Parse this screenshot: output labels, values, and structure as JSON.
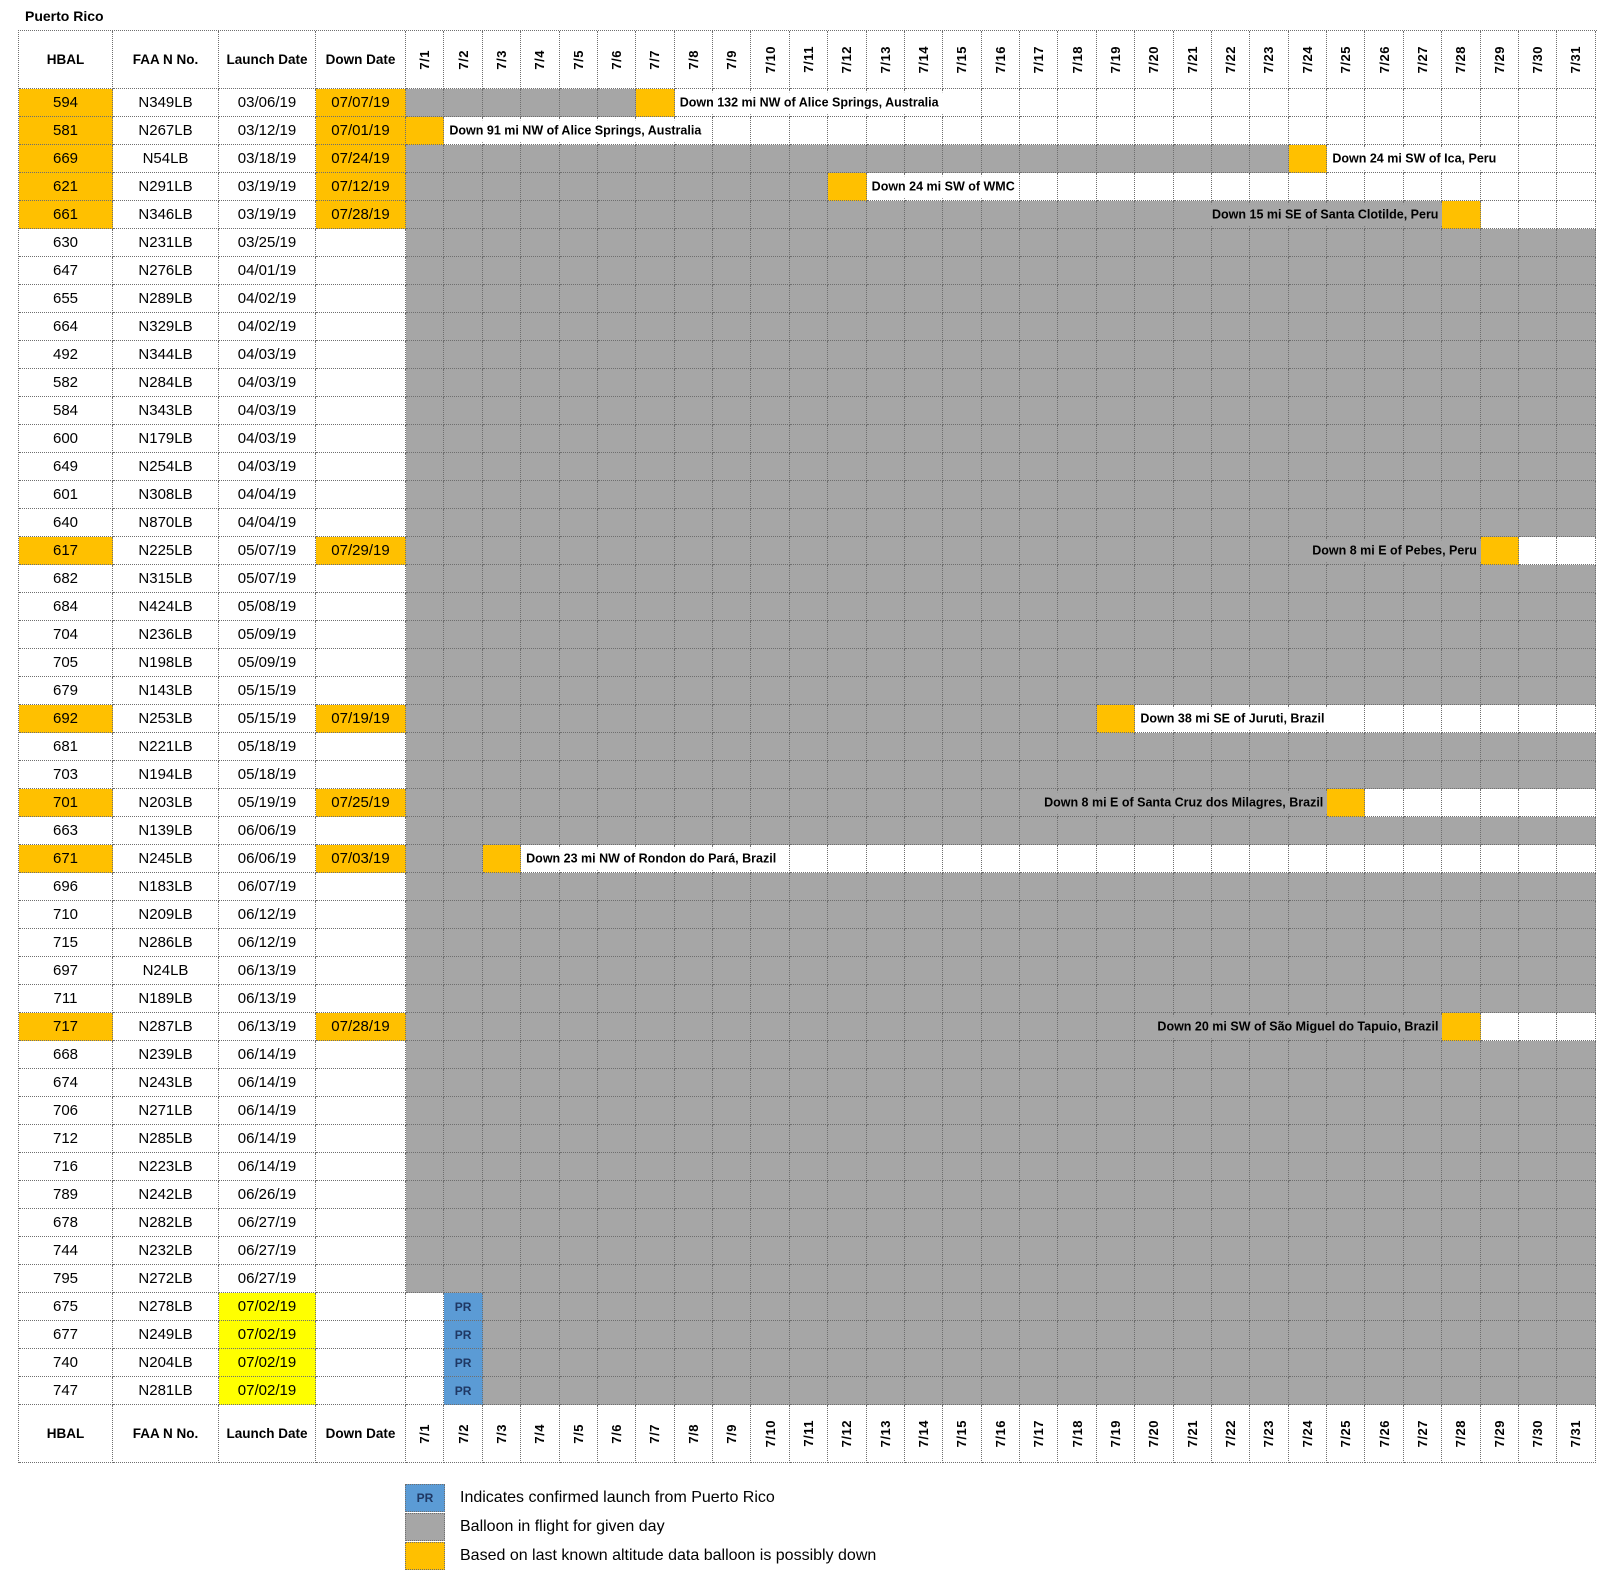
{
  "chart_data": {
    "type": "table",
    "title": "Puerto Rico",
    "columns": [
      "HBAL",
      "FAA N No.",
      "Launch Date",
      "Down Date"
    ],
    "days": [
      "7/1",
      "7/2",
      "7/3",
      "7/4",
      "7/5",
      "7/6",
      "7/7",
      "7/8",
      "7/9",
      "7/10",
      "7/11",
      "7/12",
      "7/13",
      "7/14",
      "7/15",
      "7/16",
      "7/17",
      "7/18",
      "7/19",
      "7/20",
      "7/21",
      "7/22",
      "7/23",
      "7/24",
      "7/25",
      "7/26",
      "7/27",
      "7/28",
      "7/29",
      "7/30",
      "7/31"
    ],
    "pr_cell_text": "PR",
    "colors": {
      "possibly_down_orange": "#FFC000",
      "launch_yellow": "#FFFF00",
      "in_flight_gray": "#A6A6A6",
      "pr_blue": "#5B9BD5",
      "pr_text": "#1F3864"
    },
    "rows": [
      {
        "hbal": "594",
        "faa": "N349LB",
        "launch": "03/06/19",
        "down": "07/07/19",
        "gray": [
          1,
          6
        ],
        "orange_day": 7,
        "label": "Down 132 mi NW of Alice Springs, Australia",
        "label_side": "after"
      },
      {
        "hbal": "581",
        "faa": "N267LB",
        "launch": "03/12/19",
        "down": "07/01/19",
        "gray": null,
        "orange_day": 1,
        "label": "Down 91 mi NW of Alice Springs, Australia",
        "label_side": "after"
      },
      {
        "hbal": "669",
        "faa": "N54LB",
        "launch": "03/18/19",
        "down": "07/24/19",
        "gray": [
          1,
          23
        ],
        "orange_day": 24,
        "label": "Down 24 mi SW of Ica, Peru",
        "label_side": "after"
      },
      {
        "hbal": "621",
        "faa": "N291LB",
        "launch": "03/19/19",
        "down": "07/12/19",
        "gray": [
          1,
          11
        ],
        "orange_day": 12,
        "label": "Down 24 mi SW of WMC",
        "label_side": "after"
      },
      {
        "hbal": "661",
        "faa": "N346LB",
        "launch": "03/19/19",
        "down": "07/28/19",
        "gray": [
          1,
          27
        ],
        "orange_day": 28,
        "label": "Down 15 mi SE of Santa Clotilde, Peru",
        "label_side": "before"
      },
      {
        "hbal": "630",
        "faa": "N231LB",
        "launch": "03/25/19",
        "down": "",
        "gray": [
          1,
          31
        ]
      },
      {
        "hbal": "647",
        "faa": "N276LB",
        "launch": "04/01/19",
        "down": "",
        "gray": [
          1,
          31
        ]
      },
      {
        "hbal": "655",
        "faa": "N289LB",
        "launch": "04/02/19",
        "down": "",
        "gray": [
          1,
          31
        ]
      },
      {
        "hbal": "664",
        "faa": "N329LB",
        "launch": "04/02/19",
        "down": "",
        "gray": [
          1,
          31
        ]
      },
      {
        "hbal": "492",
        "faa": "N344LB",
        "launch": "04/03/19",
        "down": "",
        "gray": [
          1,
          31
        ]
      },
      {
        "hbal": "582",
        "faa": "N284LB",
        "launch": "04/03/19",
        "down": "",
        "gray": [
          1,
          31
        ]
      },
      {
        "hbal": "584",
        "faa": "N343LB",
        "launch": "04/03/19",
        "down": "",
        "gray": [
          1,
          31
        ]
      },
      {
        "hbal": "600",
        "faa": "N179LB",
        "launch": "04/03/19",
        "down": "",
        "gray": [
          1,
          31
        ]
      },
      {
        "hbal": "649",
        "faa": "N254LB",
        "launch": "04/03/19",
        "down": "",
        "gray": [
          1,
          31
        ]
      },
      {
        "hbal": "601",
        "faa": "N308LB",
        "launch": "04/04/19",
        "down": "",
        "gray": [
          1,
          31
        ]
      },
      {
        "hbal": "640",
        "faa": "N870LB",
        "launch": "04/04/19",
        "down": "",
        "gray": [
          1,
          31
        ]
      },
      {
        "hbal": "617",
        "faa": "N225LB",
        "launch": "05/07/19",
        "down": "07/29/19",
        "gray": [
          1,
          28
        ],
        "orange_day": 29,
        "label": "Down 8 mi E of Pebes, Peru",
        "label_side": "before"
      },
      {
        "hbal": "682",
        "faa": "N315LB",
        "launch": "05/07/19",
        "down": "",
        "gray": [
          1,
          31
        ]
      },
      {
        "hbal": "684",
        "faa": "N424LB",
        "launch": "05/08/19",
        "down": "",
        "gray": [
          1,
          31
        ]
      },
      {
        "hbal": "704",
        "faa": "N236LB",
        "launch": "05/09/19",
        "down": "",
        "gray": [
          1,
          31
        ]
      },
      {
        "hbal": "705",
        "faa": "N198LB",
        "launch": "05/09/19",
        "down": "",
        "gray": [
          1,
          31
        ]
      },
      {
        "hbal": "679",
        "faa": "N143LB",
        "launch": "05/15/19",
        "down": "",
        "gray": [
          1,
          31
        ]
      },
      {
        "hbal": "692",
        "faa": "N253LB",
        "launch": "05/15/19",
        "down": "07/19/19",
        "gray": [
          1,
          18
        ],
        "orange_day": 19,
        "label": "Down 38 mi SE of Juruti, Brazil",
        "label_side": "after"
      },
      {
        "hbal": "681",
        "faa": "N221LB",
        "launch": "05/18/19",
        "down": "",
        "gray": [
          1,
          31
        ]
      },
      {
        "hbal": "703",
        "faa": "N194LB",
        "launch": "05/18/19",
        "down": "",
        "gray": [
          1,
          31
        ]
      },
      {
        "hbal": "701",
        "faa": "N203LB",
        "launch": "05/19/19",
        "down": "07/25/19",
        "gray": [
          1,
          24
        ],
        "orange_day": 25,
        "label": "Down 8 mi E of Santa Cruz dos Milagres, Brazil",
        "label_side": "before"
      },
      {
        "hbal": "663",
        "faa": "N139LB",
        "launch": "06/06/19",
        "down": "",
        "gray": [
          1,
          31
        ]
      },
      {
        "hbal": "671",
        "faa": "N245LB",
        "launch": "06/06/19",
        "down": "07/03/19",
        "gray": [
          1,
          2
        ],
        "orange_day": 3,
        "label": "Down 23 mi NW of Rondon do Pará, Brazil",
        "label_side": "after"
      },
      {
        "hbal": "696",
        "faa": "N183LB",
        "launch": "06/07/19",
        "down": "",
        "gray": [
          1,
          31
        ]
      },
      {
        "hbal": "710",
        "faa": "N209LB",
        "launch": "06/12/19",
        "down": "",
        "gray": [
          1,
          31
        ]
      },
      {
        "hbal": "715",
        "faa": "N286LB",
        "launch": "06/12/19",
        "down": "",
        "gray": [
          1,
          31
        ]
      },
      {
        "hbal": "697",
        "faa": "N24LB",
        "launch": "06/13/19",
        "down": "",
        "gray": [
          1,
          31
        ]
      },
      {
        "hbal": "711",
        "faa": "N189LB",
        "launch": "06/13/19",
        "down": "",
        "gray": [
          1,
          31
        ]
      },
      {
        "hbal": "717",
        "faa": "N287LB",
        "launch": "06/13/19",
        "down": "07/28/19",
        "gray": [
          1,
          27
        ],
        "orange_day": 28,
        "label": "Down 20 mi SW of São Miguel do Tapuio, Brazil",
        "label_side": "before"
      },
      {
        "hbal": "668",
        "faa": "N239LB",
        "launch": "06/14/19",
        "down": "",
        "gray": [
          1,
          31
        ]
      },
      {
        "hbal": "674",
        "faa": "N243LB",
        "launch": "06/14/19",
        "down": "",
        "gray": [
          1,
          31
        ]
      },
      {
        "hbal": "706",
        "faa": "N271LB",
        "launch": "06/14/19",
        "down": "",
        "gray": [
          1,
          31
        ]
      },
      {
        "hbal": "712",
        "faa": "N285LB",
        "launch": "06/14/19",
        "down": "",
        "gray": [
          1,
          31
        ]
      },
      {
        "hbal": "716",
        "faa": "N223LB",
        "launch": "06/14/19",
        "down": "",
        "gray": [
          1,
          31
        ]
      },
      {
        "hbal": "789",
        "faa": "N242LB",
        "launch": "06/26/19",
        "down": "",
        "gray": [
          1,
          31
        ]
      },
      {
        "hbal": "678",
        "faa": "N282LB",
        "launch": "06/27/19",
        "down": "",
        "gray": [
          1,
          31
        ]
      },
      {
        "hbal": "744",
        "faa": "N232LB",
        "launch": "06/27/19",
        "down": "",
        "gray": [
          1,
          31
        ]
      },
      {
        "hbal": "795",
        "faa": "N272LB",
        "launch": "06/27/19",
        "down": "",
        "gray": [
          1,
          31
        ]
      },
      {
        "hbal": "675",
        "faa": "N278LB",
        "launch": "07/02/19",
        "down": "",
        "launch_hl": true,
        "pr_day": 2,
        "gray": [
          3,
          31
        ]
      },
      {
        "hbal": "677",
        "faa": "N249LB",
        "launch": "07/02/19",
        "down": "",
        "launch_hl": true,
        "pr_day": 2,
        "gray": [
          3,
          31
        ]
      },
      {
        "hbal": "740",
        "faa": "N204LB",
        "launch": "07/02/19",
        "down": "",
        "launch_hl": true,
        "pr_day": 2,
        "gray": [
          3,
          31
        ]
      },
      {
        "hbal": "747",
        "faa": "N281LB",
        "launch": "07/02/19",
        "down": "",
        "launch_hl": true,
        "pr_day": 2,
        "gray": [
          3,
          31
        ]
      }
    ],
    "legend": [
      {
        "swatch": "blue",
        "swatch_label": "PR",
        "label": "Indicates confirmed launch from Puerto Rico"
      },
      {
        "swatch": "gray",
        "swatch_label": "",
        "label": "Balloon in flight for given day"
      },
      {
        "swatch": "orange",
        "swatch_label": "",
        "label": "Based on last known altitude data balloon is possibly down"
      }
    ]
  }
}
